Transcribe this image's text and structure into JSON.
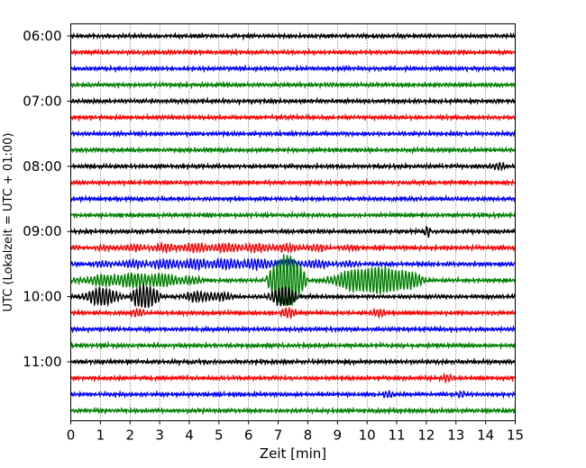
{
  "chart_data": {
    "type": "line",
    "title": "",
    "xlabel": "Zeit  [min]",
    "ylabel": "UTC (Lokalzeit = UTC + 01:00)",
    "xlim": [
      0,
      15
    ],
    "x_ticks": [
      "0",
      "1",
      "2",
      "3",
      "4",
      "5",
      "6",
      "7",
      "8",
      "9",
      "10",
      "11",
      "12",
      "13",
      "14",
      "15"
    ],
    "y_tick_labels": [
      "06:00",
      "07:00",
      "08:00",
      "09:00",
      "10:00",
      "11:00"
    ],
    "y_tick_trace_index": [
      0,
      4,
      8,
      12,
      16,
      20
    ],
    "grid": "vertical dotted lines at each minute",
    "trace_interval_minutes": 15,
    "trace_colors": [
      "#000000",
      "#ff0000",
      "#0000ff",
      "#008000"
    ],
    "traces": [
      {
        "start": "06:00",
        "color": "#000000",
        "events": []
      },
      {
        "start": "06:15",
        "color": "#ff0000",
        "events": []
      },
      {
        "start": "06:30",
        "color": "#0000ff",
        "events": []
      },
      {
        "start": "06:45",
        "color": "#008000",
        "events": []
      },
      {
        "start": "07:00",
        "color": "#000000",
        "events": []
      },
      {
        "start": "07:15",
        "color": "#ff0000",
        "events": []
      },
      {
        "start": "07:30",
        "color": "#0000ff",
        "events": []
      },
      {
        "start": "07:45",
        "color": "#008000",
        "events": []
      },
      {
        "start": "08:00",
        "color": "#000000",
        "events": [
          {
            "t": 14.0,
            "amp": 0.35,
            "dur": 1.0
          }
        ]
      },
      {
        "start": "08:15",
        "color": "#ff0000",
        "events": []
      },
      {
        "start": "08:30",
        "color": "#0000ff",
        "events": []
      },
      {
        "start": "08:45",
        "color": "#008000",
        "events": []
      },
      {
        "start": "09:00",
        "color": "#000000",
        "events": [
          {
            "t": 11.9,
            "amp": 0.7,
            "dur": 0.4
          }
        ]
      },
      {
        "start": "09:15",
        "color": "#ff0000",
        "events": [
          {
            "t": 0.0,
            "amp": 0.35,
            "dur": 15.0
          }
        ]
      },
      {
        "start": "09:30",
        "color": "#0000ff",
        "events": [
          {
            "t": 0.0,
            "amp": 0.45,
            "dur": 15.0
          }
        ]
      },
      {
        "start": "09:45",
        "color": "#008000",
        "events": [
          {
            "t": 0.0,
            "amp": 0.7,
            "dur": 6.6
          },
          {
            "t": 6.6,
            "amp": 2.8,
            "dur": 2.0
          },
          {
            "t": 8.6,
            "amp": 1.4,
            "dur": 5.0
          }
        ]
      },
      {
        "start": "10:00",
        "color": "#000000",
        "events": [
          {
            "t": 0.3,
            "amp": 0.9,
            "dur": 2.2
          },
          {
            "t": 2.0,
            "amp": 1.3,
            "dur": 1.5
          },
          {
            "t": 3.5,
            "amp": 0.5,
            "dur": 3.0
          },
          {
            "t": 6.6,
            "amp": 1.0,
            "dur": 1.6
          }
        ]
      },
      {
        "start": "10:15",
        "color": "#ff0000",
        "events": [
          {
            "t": 2.0,
            "amp": 0.35,
            "dur": 1.0
          },
          {
            "t": 7.0,
            "amp": 0.4,
            "dur": 1.0
          },
          {
            "t": 10.0,
            "amp": 0.3,
            "dur": 1.0
          }
        ]
      },
      {
        "start": "10:30",
        "color": "#0000ff",
        "events": []
      },
      {
        "start": "10:45",
        "color": "#008000",
        "events": []
      },
      {
        "start": "11:00",
        "color": "#000000",
        "events": []
      },
      {
        "start": "11:15",
        "color": "#ff0000",
        "events": [
          {
            "t": 12.5,
            "amp": 0.3,
            "dur": 0.8
          }
        ]
      },
      {
        "start": "11:30",
        "color": "#0000ff",
        "events": [
          {
            "t": 10.5,
            "amp": 0.3,
            "dur": 0.8
          },
          {
            "t": 13.0,
            "amp": 0.4,
            "dur": 0.5
          }
        ]
      },
      {
        "start": "11:45",
        "color": "#008000",
        "events": []
      }
    ]
  }
}
